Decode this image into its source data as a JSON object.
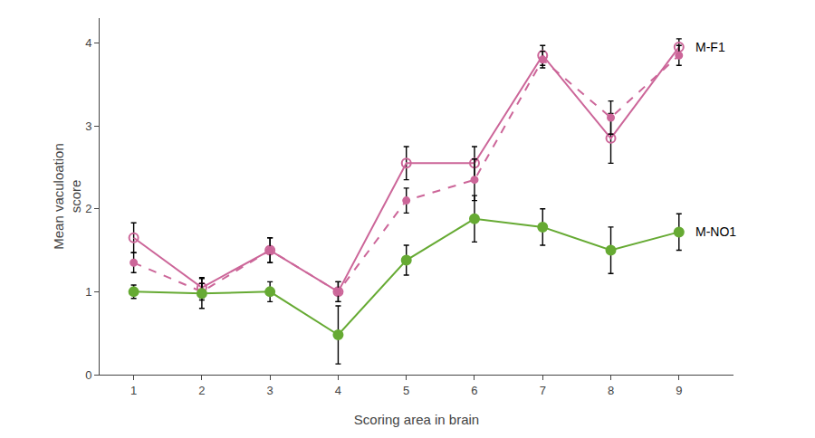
{
  "chart_data": {
    "type": "line",
    "x": [
      1,
      2,
      3,
      4,
      5,
      6,
      7,
      8,
      9
    ],
    "xlabel": "Scoring area in brain",
    "ylabel": "Mean vaculoation\nscore",
    "xlim": [
      0.5,
      9.8
    ],
    "ylim": [
      0,
      4.3
    ],
    "xticks": [
      1,
      2,
      3,
      4,
      5,
      6,
      7,
      8,
      9
    ],
    "yticks": [
      0,
      1,
      2,
      3,
      4
    ],
    "grid": false,
    "series": [
      {
        "color": "#cc6699",
        "marker": "circle-open",
        "line_style": "solid",
        "values": [
          1.65,
          1.05,
          1.5,
          1.0,
          2.55,
          2.55,
          3.85,
          2.85,
          3.95
        ],
        "error": [
          0.18,
          0.12,
          0.15,
          0.12,
          0.2,
          0.2,
          0.12,
          0.3,
          0.1
        ]
      },
      {
        "color": "#cc6699",
        "marker": "circle",
        "line_style": "dashed",
        "values": [
          1.35,
          1.0,
          1.5,
          1.0,
          2.1,
          2.35,
          3.8,
          3.1,
          3.85
        ],
        "error": [
          0.12,
          0.1,
          0.15,
          0.12,
          0.15,
          0.25,
          0.1,
          0.2,
          0.12
        ]
      },
      {
        "color": "#66aa33",
        "marker": "circle",
        "line_style": "solid",
        "values": [
          1.0,
          0.98,
          1.0,
          0.48,
          1.38,
          1.88,
          1.78,
          1.5,
          1.72
        ],
        "error": [
          0.08,
          0.18,
          0.12,
          0.35,
          0.18,
          0.28,
          0.22,
          0.28,
          0.22
        ]
      }
    ],
    "annotations": [
      {
        "text": "M-F1",
        "x": 9,
        "y": 3.95
      },
      {
        "text": "M-NO1",
        "x": 9,
        "y": 1.72
      }
    ]
  }
}
